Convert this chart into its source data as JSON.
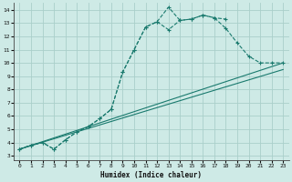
{
  "bg_color": "#ceeae6",
  "grid_color_major": "#aacfca",
  "grid_color_minor": "#bddbd7",
  "line_color": "#1a7a6e",
  "xlabel": "Humidex (Indice chaleur)",
  "xlim": [
    -0.5,
    23.5
  ],
  "ylim": [
    2.7,
    14.5
  ],
  "xticks": [
    0,
    1,
    2,
    3,
    4,
    5,
    6,
    7,
    8,
    9,
    10,
    11,
    12,
    13,
    14,
    15,
    16,
    17,
    18,
    19,
    20,
    21,
    22,
    23
  ],
  "yticks": [
    3,
    4,
    5,
    6,
    7,
    8,
    9,
    10,
    11,
    12,
    13,
    14
  ],
  "curve1_x": [
    0,
    1,
    2,
    3,
    4,
    5,
    6,
    7,
    8,
    9,
    10,
    11,
    12,
    13,
    14,
    15,
    16,
    17,
    18
  ],
  "curve1_y": [
    3.5,
    3.8,
    4.0,
    3.5,
    4.2,
    4.8,
    5.2,
    5.8,
    6.5,
    9.3,
    11.0,
    12.7,
    13.1,
    14.2,
    13.2,
    13.3,
    13.6,
    13.4,
    13.3
  ],
  "curve2_x": [
    0,
    1,
    2,
    3,
    4,
    5,
    6,
    7,
    8,
    9,
    10,
    11,
    12,
    13,
    14,
    15,
    16,
    17,
    18,
    19,
    20,
    21,
    22,
    23
  ],
  "curve2_y": [
    3.5,
    3.8,
    4.0,
    3.5,
    4.2,
    4.8,
    5.2,
    5.8,
    6.5,
    9.3,
    11.0,
    12.7,
    13.1,
    12.5,
    13.2,
    13.3,
    13.6,
    13.4,
    12.6,
    11.5,
    10.5,
    10.0,
    10.0,
    10.0
  ],
  "line1_x": [
    0,
    23
  ],
  "line1_y": [
    3.5,
    9.5
  ],
  "line2_x": [
    0,
    23
  ],
  "line2_y": [
    3.5,
    10.0
  ]
}
